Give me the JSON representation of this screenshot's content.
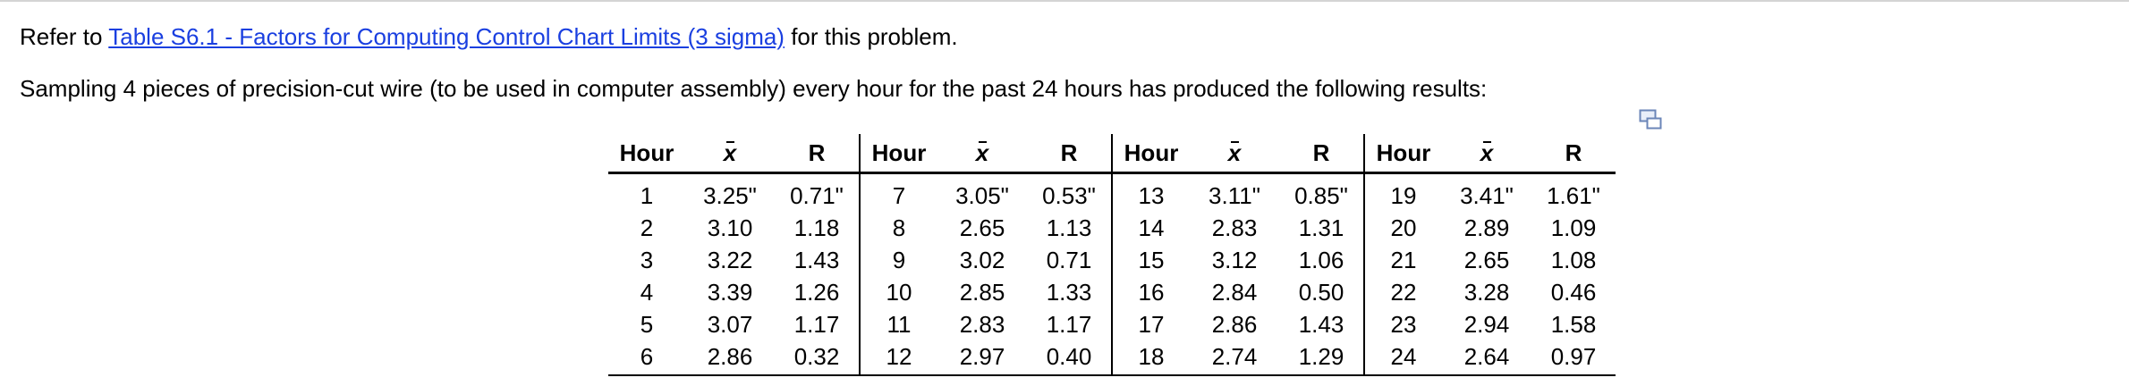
{
  "intro": {
    "prefix": "Refer to ",
    "link_text": "Table S6.1 - Factors for Computing Control Chart Limits (3 sigma)",
    "suffix": " for this problem."
  },
  "problem_text": "Sampling 4 pieces of precision-cut wire (to be used in computer assembly) every hour for the past 24 hours has produced the following results:",
  "table": {
    "headers": {
      "hour": "Hour",
      "xbar": "x",
      "r": "R"
    },
    "rows": [
      [
        [
          "1",
          "3.25\"",
          "0.71\""
        ],
        [
          "7",
          "3.05\"",
          "0.53\""
        ],
        [
          "13",
          "3.11\"",
          "0.85\""
        ],
        [
          "19",
          "3.41\"",
          "1.61\""
        ]
      ],
      [
        [
          "2",
          "3.10",
          "1.18"
        ],
        [
          "8",
          "2.65",
          "1.13"
        ],
        [
          "14",
          "2.83",
          "1.31"
        ],
        [
          "20",
          "2.89",
          "1.09"
        ]
      ],
      [
        [
          "3",
          "3.22",
          "1.43"
        ],
        [
          "9",
          "3.02",
          "0.71"
        ],
        [
          "15",
          "3.12",
          "1.06"
        ],
        [
          "21",
          "2.65",
          "1.08"
        ]
      ],
      [
        [
          "4",
          "3.39",
          "1.26"
        ],
        [
          "10",
          "2.85",
          "1.33"
        ],
        [
          "16",
          "2.84",
          "0.50"
        ],
        [
          "22",
          "3.28",
          "0.46"
        ]
      ],
      [
        [
          "5",
          "3.07",
          "1.17"
        ],
        [
          "11",
          "2.83",
          "1.17"
        ],
        [
          "17",
          "2.86",
          "1.43"
        ],
        [
          "23",
          "2.94",
          "1.58"
        ]
      ],
      [
        [
          "6",
          "2.86",
          "0.32"
        ],
        [
          "12",
          "2.97",
          "0.40"
        ],
        [
          "18",
          "2.74",
          "1.29"
        ],
        [
          "24",
          "2.64",
          "0.97"
        ]
      ]
    ]
  },
  "icons": {
    "zoom": "expand-table-icon"
  }
}
